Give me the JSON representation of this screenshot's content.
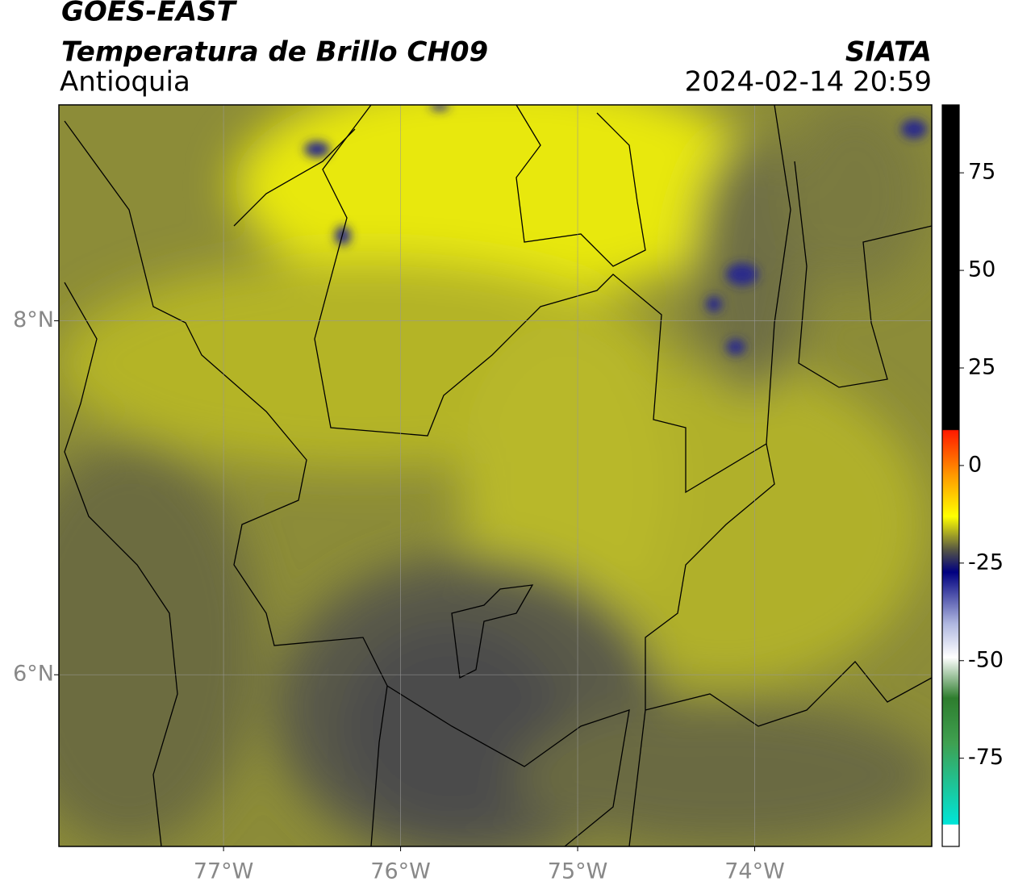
{
  "header": {
    "title": "GOES-EAST",
    "subtitle": "Temperatura de Brillo CH09",
    "region": "Antioquia",
    "source": "SIATA",
    "timestamp": "2024-02-14 20:59"
  },
  "map": {
    "xlim": [
      -77.93,
      -73.0
    ],
    "ylim": [
      5.03,
      9.22
    ],
    "xticks": [
      {
        "value": -77,
        "label": "77°W"
      },
      {
        "value": -76,
        "label": "76°W"
      },
      {
        "value": -75,
        "label": "75°W"
      },
      {
        "value": -74,
        "label": "74°W"
      }
    ],
    "yticks": [
      {
        "value": 8,
        "label": "8°N"
      },
      {
        "value": 6,
        "label": "6°N"
      }
    ]
  },
  "colorbar": {
    "lim": [
      -97.6,
      92.4
    ],
    "ticks": [
      75,
      50,
      25,
      0,
      -25,
      -50,
      -75
    ]
  }
}
